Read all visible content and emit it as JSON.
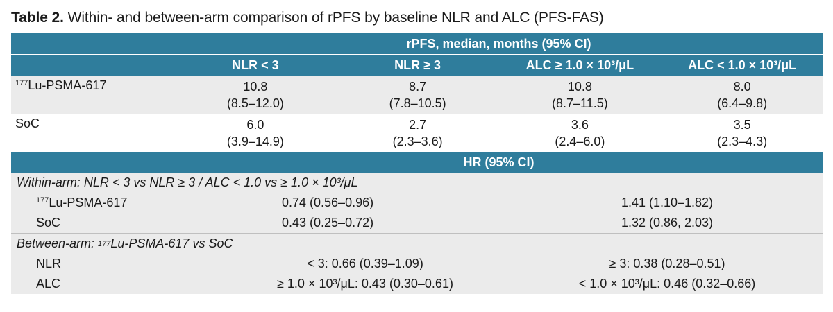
{
  "caption": {
    "label": "Table 2.",
    "text": "Within- and between-arm comparison of rPFS by baseline NLR and ALC (PFS-FAS)"
  },
  "colors": {
    "header": "#2f7d9c",
    "band": "#ebebeb"
  },
  "rpfs": {
    "group_header": "rPFS, median, months (95% CI)",
    "columns": [
      "NLR < 3",
      "NLR ≥ 3",
      "ALC ≥ 1.0 × 10³/μL",
      "ALC < 1.0 × 10³/μL"
    ],
    "rows": [
      {
        "sup": "177",
        "label": "Lu-PSMA-617",
        "cells": [
          {
            "median": "10.8",
            "ci": "(8.5–12.0)"
          },
          {
            "median": "8.7",
            "ci": "(7.8–10.5)"
          },
          {
            "median": "10.8",
            "ci": "(8.7–11.5)"
          },
          {
            "median": "8.0",
            "ci": "(6.4–9.8)"
          }
        ]
      },
      {
        "sup": "",
        "label": "SoC",
        "cells": [
          {
            "median": "6.0",
            "ci": "(3.9–14.9)"
          },
          {
            "median": "2.7",
            "ci": "(2.3–3.6)"
          },
          {
            "median": "3.6",
            "ci": "(2.4–6.0)"
          },
          {
            "median": "3.5",
            "ci": "(2.3–4.3)"
          }
        ]
      }
    ]
  },
  "hr": {
    "group_header": "HR (95% CI)",
    "within": {
      "title": "Within-arm: NLR < 3 vs NLR ≥ 3 / ALC < 1.0 vs ≥ 1.0 × 10³/μL",
      "rows": [
        {
          "sup": "177",
          "label": "Lu-PSMA-617",
          "left": "0.74 (0.56–0.96)",
          "right": "1.41 (1.10–1.82)"
        },
        {
          "sup": "",
          "label": "SoC",
          "left": "0.43 (0.25–0.72)",
          "right": "1.32 (0.86, 2.03)"
        }
      ]
    },
    "between": {
      "title_pre": "Between-arm: ",
      "title_sup": "177",
      "title_post": "Lu-PSMA-617 vs SoC",
      "rows": [
        {
          "label": "NLR",
          "left": "< 3: 0.66 (0.39–1.09)",
          "right": "≥ 3: 0.38 (0.28–0.51)"
        },
        {
          "label": "ALC",
          "left": "≥ 1.0 × 10³/μL: 0.43 (0.30–0.61)",
          "right": "< 1.0 × 10³/μL: 0.46 (0.32–0.66)"
        }
      ]
    }
  }
}
